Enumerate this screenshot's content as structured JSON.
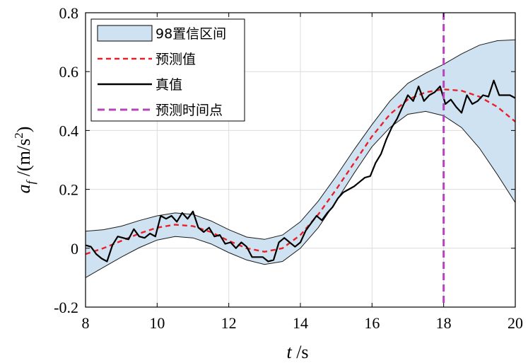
{
  "chart_data": {
    "type": "line",
    "xlabel": {
      "var": "t",
      "unit": "/s"
    },
    "ylabel": {
      "var": "a",
      "sub": "f",
      "unit": "/(m/s",
      "sup": "2",
      "close": ")"
    },
    "xlim": [
      8,
      20
    ],
    "ylim": [
      -0.2,
      0.8
    ],
    "xticks": [
      "8",
      "10",
      "12",
      "14",
      "16",
      "18",
      "20"
    ],
    "yticks": [
      "-0.2",
      "0",
      "0.2",
      "0.4",
      "0.6",
      "0.8"
    ],
    "grid": true,
    "legend_position": "top-left",
    "legend": [
      "98置信区间",
      "预测值",
      "真值",
      "预测时间点"
    ],
    "prediction_time": 18,
    "series": [
      {
        "name": "98置信区间",
        "kind": "band",
        "color": "#cfe2f1",
        "x": [
          8,
          8.5,
          9,
          9.5,
          10,
          10.5,
          11,
          11.5,
          12,
          12.5,
          13,
          13.5,
          14,
          14.5,
          15,
          15.5,
          16,
          16.5,
          17,
          17.5,
          18,
          18.5,
          19,
          19.5,
          20
        ],
        "upper": [
          0.058,
          0.063,
          0.075,
          0.094,
          0.11,
          0.12,
          0.115,
          0.093,
          0.063,
          0.038,
          0.03,
          0.045,
          0.09,
          0.16,
          0.245,
          0.335,
          0.42,
          0.5,
          0.56,
          0.595,
          0.625,
          0.66,
          0.69,
          0.705,
          0.708
        ],
        "lower": [
          -0.1,
          -0.065,
          -0.03,
          0.002,
          0.028,
          0.04,
          0.035,
          0.015,
          -0.015,
          -0.04,
          -0.055,
          -0.045,
          0.0,
          0.07,
          0.16,
          0.255,
          0.345,
          0.41,
          0.455,
          0.465,
          0.45,
          0.41,
          0.34,
          0.25,
          0.155
        ]
      },
      {
        "name": "预测值",
        "kind": "line",
        "color": "#e8202a",
        "dash": "dashed",
        "x": [
          8,
          8.5,
          9,
          9.5,
          10,
          10.5,
          11,
          11.5,
          12,
          12.5,
          13,
          13.5,
          14,
          14.5,
          15,
          15.5,
          16,
          16.5,
          17,
          17.5,
          18,
          18.5,
          19,
          19.5,
          20
        ],
        "y": [
          -0.02,
          0.0,
          0.025,
          0.05,
          0.07,
          0.08,
          0.075,
          0.055,
          0.025,
          0.0,
          -0.012,
          0.0,
          0.045,
          0.115,
          0.2,
          0.29,
          0.38,
          0.455,
          0.505,
          0.53,
          0.54,
          0.535,
          0.515,
          0.48,
          0.43
        ]
      },
      {
        "name": "真值",
        "kind": "line",
        "color": "#000000",
        "x": [
          8,
          8.15,
          8.3,
          8.45,
          8.6,
          8.75,
          8.9,
          9.05,
          9.2,
          9.35,
          9.5,
          9.65,
          9.8,
          9.95,
          10.1,
          10.25,
          10.4,
          10.55,
          10.7,
          10.85,
          11.0,
          11.15,
          11.3,
          11.45,
          11.6,
          11.75,
          11.9,
          12.05,
          12.2,
          12.35,
          12.5,
          12.65,
          12.8,
          12.95,
          13.1,
          13.25,
          13.4,
          13.55,
          13.7,
          13.85,
          14.0,
          14.15,
          14.3,
          14.45,
          14.6,
          14.75,
          14.9,
          15.05,
          15.2,
          15.35,
          15.5,
          15.65,
          15.8,
          15.95,
          16.1,
          16.25,
          16.4,
          16.55,
          16.7,
          16.85,
          17.0,
          17.15,
          17.3,
          17.45,
          17.6,
          17.75,
          17.9,
          18.05,
          18.2,
          18.35,
          18.5,
          18.65,
          18.8,
          18.95,
          19.1,
          19.25,
          19.4,
          19.55,
          19.7,
          19.85,
          20.0
        ],
        "y": [
          0.01,
          0.005,
          -0.02,
          -0.035,
          -0.045,
          0.01,
          0.04,
          0.035,
          0.03,
          0.065,
          0.04,
          0.035,
          0.05,
          0.04,
          0.11,
          0.1,
          0.11,
          0.09,
          0.12,
          0.1,
          0.125,
          0.07,
          0.055,
          0.07,
          0.04,
          0.045,
          0.015,
          0.02,
          0.0,
          0.02,
          0.005,
          -0.03,
          -0.03,
          -0.03,
          -0.045,
          -0.04,
          0.02,
          0.035,
          0.02,
          0.005,
          0.02,
          0.06,
          0.085,
          0.11,
          0.095,
          0.12,
          0.14,
          0.17,
          0.19,
          0.2,
          0.21,
          0.225,
          0.24,
          0.245,
          0.29,
          0.32,
          0.37,
          0.41,
          0.44,
          0.48,
          0.52,
          0.5,
          0.55,
          0.5,
          0.52,
          0.53,
          0.55,
          0.49,
          0.505,
          0.48,
          0.46,
          0.52,
          0.49,
          0.5,
          0.52,
          0.515,
          0.57,
          0.52,
          0.52,
          0.52,
          0.51
        ]
      },
      {
        "name": "预测时间点",
        "kind": "vline",
        "color": "#b545bb",
        "dash": "dashed",
        "x": 18
      }
    ]
  }
}
